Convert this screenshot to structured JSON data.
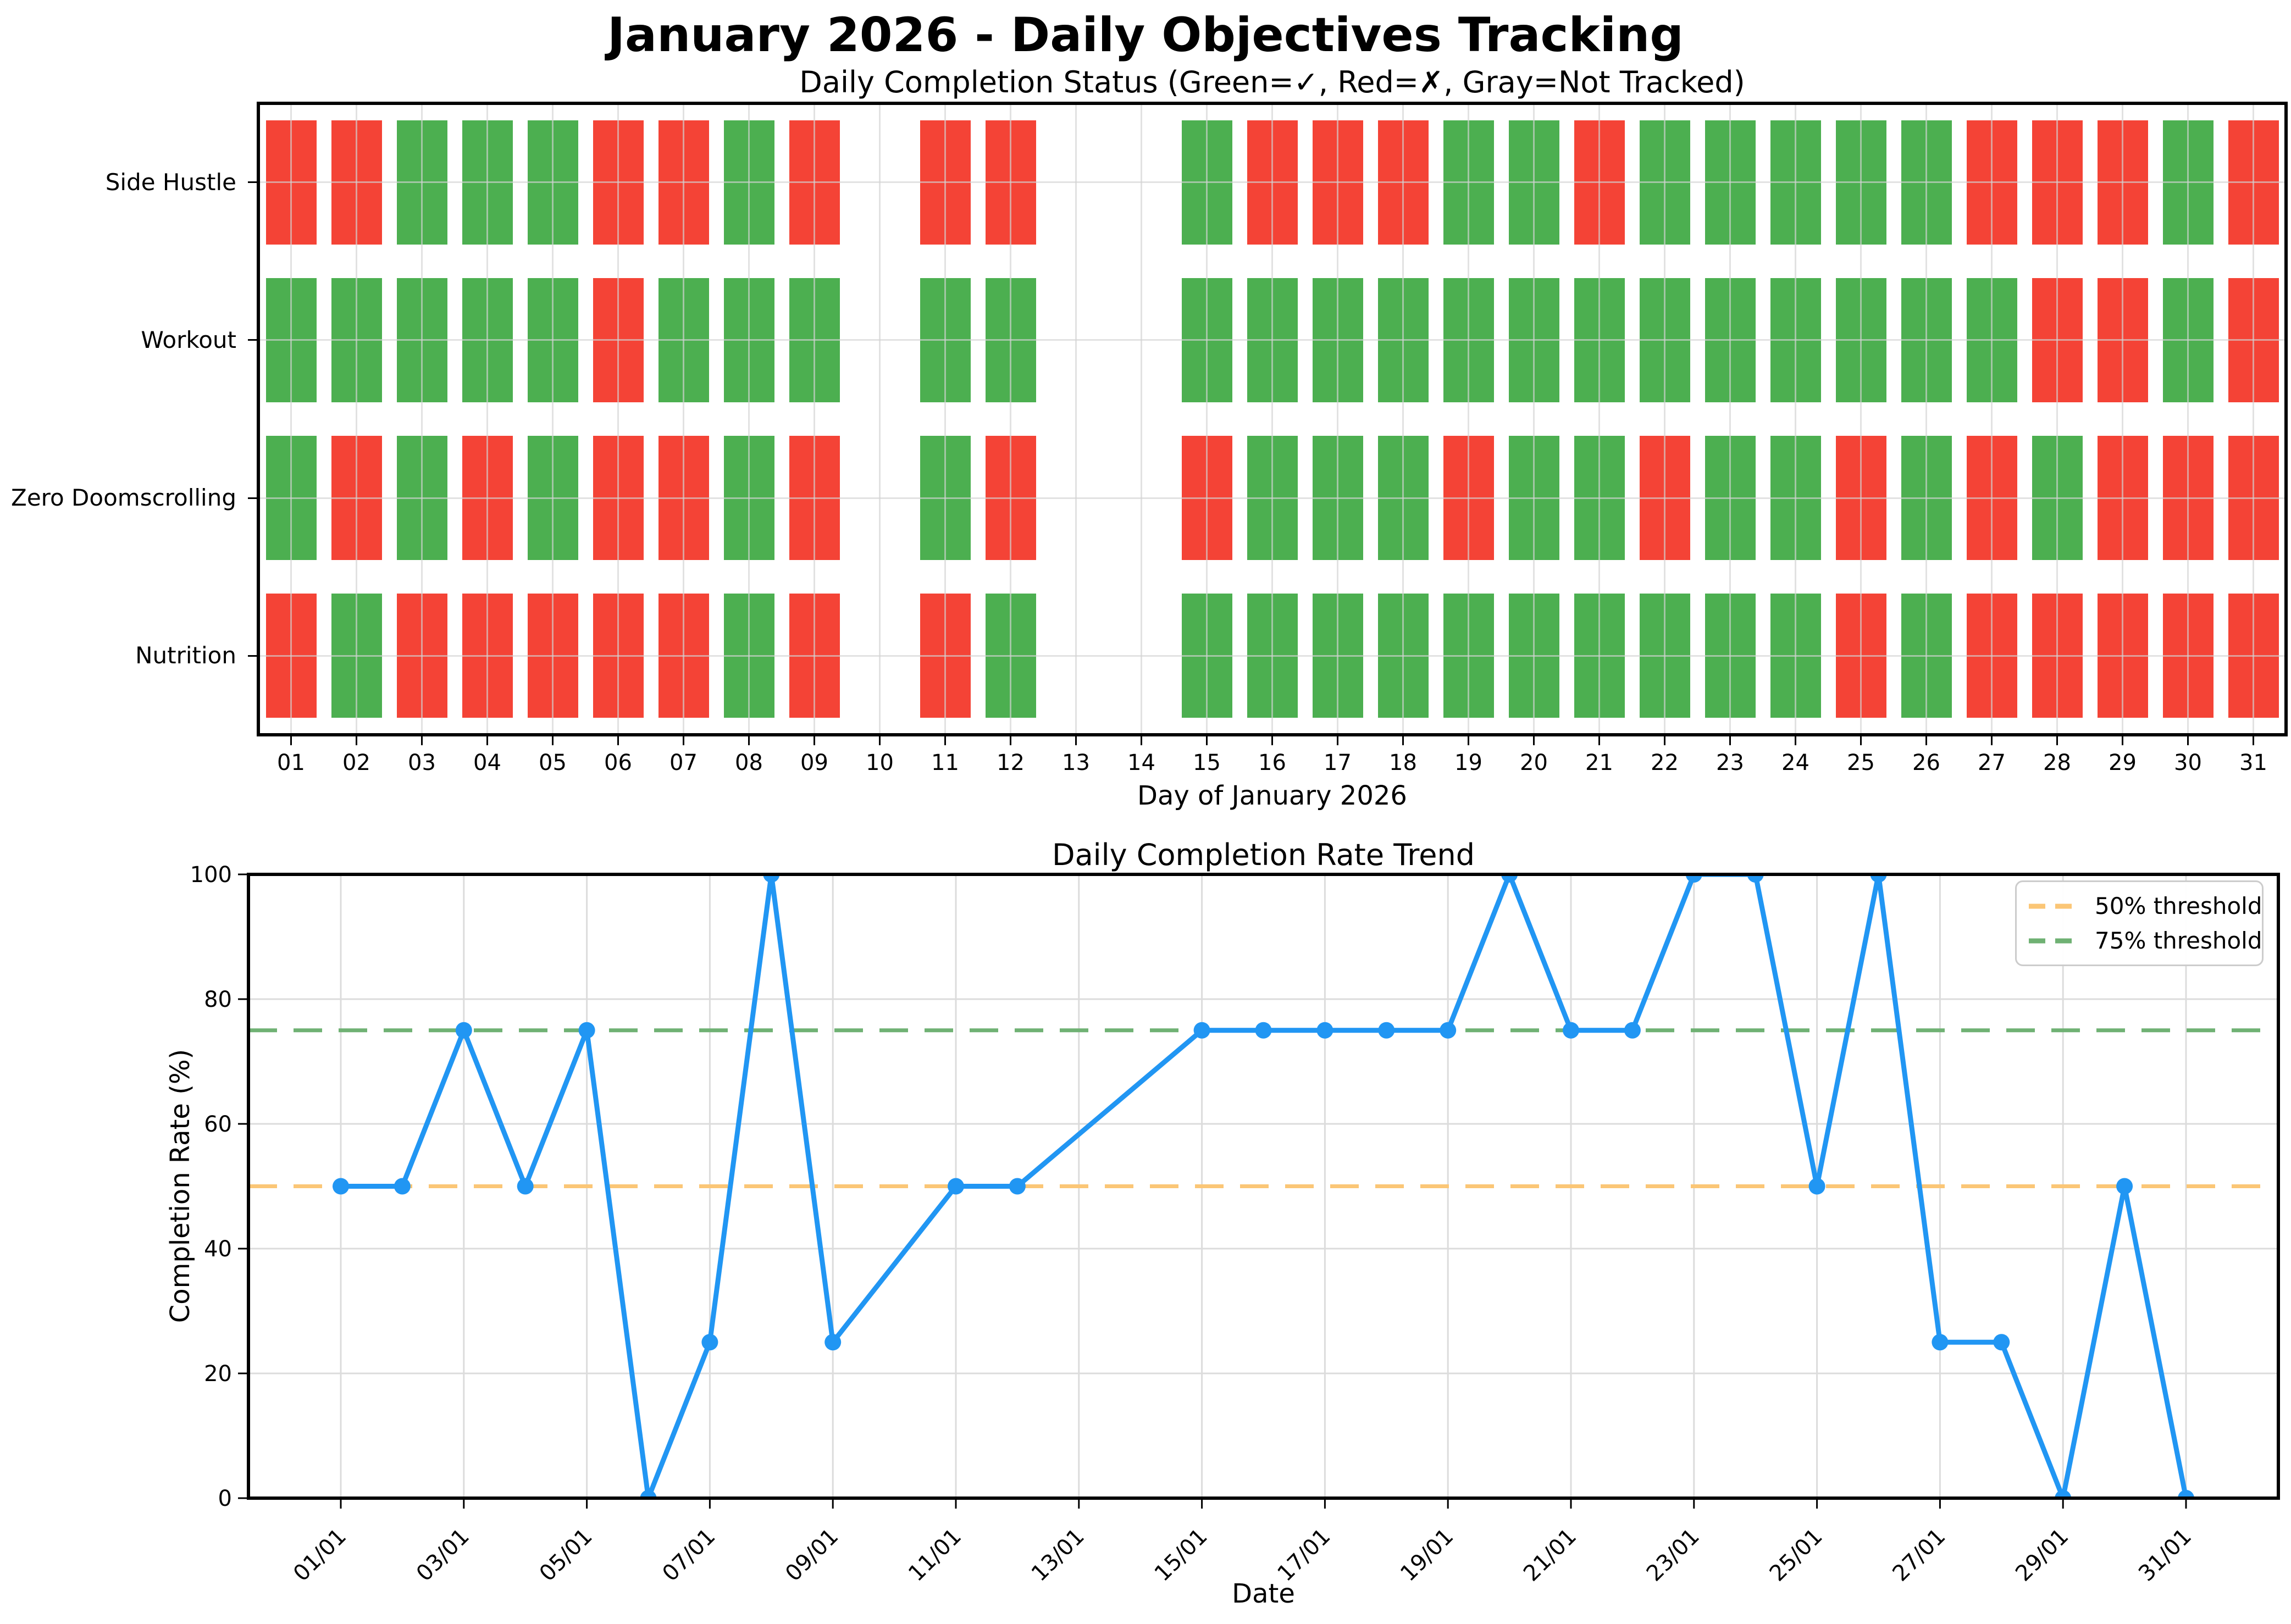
{
  "title": "January 2026 - Daily Objectives Tracking",
  "colors": {
    "done_green": "#4CAF50",
    "missed_red": "#F44336",
    "line_blue": "#2196F3",
    "threshold_50": "#FBC676",
    "threshold_75": "#6FB173",
    "grid": "#DCDCDC",
    "axis": "#000000"
  },
  "chart_data": [
    {
      "type": "heatmap",
      "title": "Daily Completion Status (Green=✓, Red=✗, Gray=Not Tracked)",
      "xlabel": "Day of January 2026",
      "x_ticklabels": [
        "01",
        "02",
        "03",
        "04",
        "05",
        "06",
        "07",
        "08",
        "09",
        "10",
        "11",
        "12",
        "13",
        "14",
        "15",
        "16",
        "17",
        "18",
        "19",
        "20",
        "21",
        "22",
        "23",
        "24",
        "25",
        "26",
        "27",
        "28",
        "29",
        "30",
        "31"
      ],
      "not_tracked_days": [
        10,
        13,
        14
      ],
      "status_legend": {
        "✓": "green",
        "✗": "red",
        "not_tracked": "no bar"
      },
      "rows": [
        {
          "label": "Side Hustle",
          "status": [
            "✗",
            "✗",
            "✓",
            "✓",
            "✓",
            "✗",
            "✗",
            "✓",
            "✗",
            null,
            "✗",
            "✗",
            null,
            null,
            "✓",
            "✗",
            "✗",
            "✗",
            "✓",
            "✓",
            "✗",
            "✓",
            "✓",
            "✓",
            "✓",
            "✓",
            "✗",
            "✗",
            "✗",
            "✓",
            "✗"
          ]
        },
        {
          "label": "Workout",
          "status": [
            "✓",
            "✓",
            "✓",
            "✓",
            "✓",
            "✗",
            "✓",
            "✓",
            "✓",
            null,
            "✓",
            "✓",
            null,
            null,
            "✓",
            "✓",
            "✓",
            "✓",
            "✓",
            "✓",
            "✓",
            "✓",
            "✓",
            "✓",
            "✓",
            "✓",
            "✓",
            "✗",
            "✗",
            "✓",
            "✗"
          ]
        },
        {
          "label": "Zero Doomscrolling",
          "status": [
            "✓",
            "✗",
            "✓",
            "✗",
            "✓",
            "✗",
            "✗",
            "✓",
            "✗",
            null,
            "✓",
            "✗",
            null,
            null,
            "✗",
            "✓",
            "✓",
            "✓",
            "✗",
            "✓",
            "✓",
            "✗",
            "✓",
            "✓",
            "✗",
            "✓",
            "✗",
            "✓",
            "✗",
            "✗",
            "✗"
          ]
        },
        {
          "label": "Nutrition",
          "status": [
            "✗",
            "✓",
            "✗",
            "✗",
            "✗",
            "✗",
            "✗",
            "✓",
            "✗",
            null,
            "✗",
            "✓",
            null,
            null,
            "✓",
            "✓",
            "✓",
            "✓",
            "✓",
            "✓",
            "✓",
            "✓",
            "✓",
            "✓",
            "✗",
            "✓",
            "✗",
            "✗",
            "✗",
            "✗",
            "✗"
          ]
        }
      ]
    },
    {
      "type": "line",
      "title": "Daily Completion Rate Trend",
      "xlabel": "Date",
      "ylabel": "Completion Rate (%)",
      "ylim": [
        0,
        100
      ],
      "yticks": [
        0,
        20,
        40,
        60,
        80,
        100
      ],
      "x_tick_days": [
        1,
        3,
        5,
        7,
        9,
        11,
        13,
        15,
        17,
        19,
        21,
        23,
        25,
        27,
        29,
        31
      ],
      "x_ticklabels": [
        "01/01",
        "03/01",
        "05/01",
        "07/01",
        "09/01",
        "11/01",
        "13/01",
        "15/01",
        "17/01",
        "19/01",
        "21/01",
        "23/01",
        "25/01",
        "27/01",
        "29/01",
        "31/01"
      ],
      "days": [
        1,
        2,
        3,
        4,
        5,
        6,
        7,
        8,
        9,
        10,
        11,
        12,
        13,
        14,
        15,
        16,
        17,
        18,
        19,
        20,
        21,
        22,
        23,
        24,
        25,
        26,
        27,
        28,
        29,
        30,
        31
      ],
      "values": [
        50,
        50,
        75,
        50,
        75,
        0,
        25,
        100,
        25,
        null,
        50,
        50,
        null,
        null,
        75,
        75,
        75,
        75,
        75,
        100,
        75,
        75,
        100,
        100,
        50,
        100,
        25,
        25,
        0,
        50,
        0
      ],
      "grid": true,
      "legend_position": "upper right",
      "thresholds": [
        {
          "value": 50,
          "label": "50% threshold",
          "color": "#FBC676"
        },
        {
          "value": 75,
          "label": "75% threshold",
          "color": "#6FB173"
        }
      ]
    }
  ]
}
